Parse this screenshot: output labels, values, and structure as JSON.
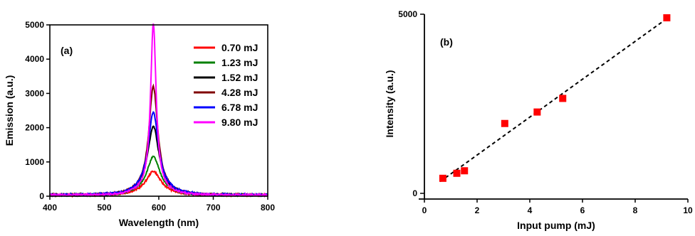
{
  "chart_data": [
    {
      "type": "line",
      "panel_label": "(a)",
      "xlabel": "Wavelength (nm)",
      "ylabel": "Emission (a.u.)",
      "xlim": [
        400,
        800
      ],
      "ylim": [
        0,
        5000
      ],
      "xticks": [
        400,
        500,
        600,
        700,
        800
      ],
      "yticks": [
        0,
        1000,
        2000,
        3000,
        4000,
        5000
      ],
      "peak_wavelength": 590,
      "legend_position": "top-right",
      "series": [
        {
          "name": "0.70 mJ",
          "color": "#ff0000",
          "peak": 580
        },
        {
          "name": "1.23 mJ",
          "color": "#008000",
          "peak": 1000
        },
        {
          "name": "1.52 mJ",
          "color": "#000000",
          "peak": 1900
        },
        {
          "name": "4.28 mJ",
          "color": "#800000",
          "peak": 3050
        },
        {
          "name": "6.78 mJ",
          "color": "#0000ff",
          "peak": 2300
        },
        {
          "name": "9.80 mJ",
          "color": "#ff00ff",
          "peak": 4900
        }
      ]
    },
    {
      "type": "scatter",
      "panel_label": "(b)",
      "xlabel": "Input pump (mJ)",
      "ylabel": "Intensity (a.u.)",
      "xlim": [
        0,
        10
      ],
      "ylim": [
        0,
        5000
      ],
      "xticks": [
        0,
        2,
        4,
        6,
        8,
        10
      ],
      "yticks": [
        0,
        5000
      ],
      "marker_color": "#ff0000",
      "points": [
        {
          "x": 0.7,
          "y": 420
        },
        {
          "x": 1.23,
          "y": 560
        },
        {
          "x": 1.52,
          "y": 630
        },
        {
          "x": 3.05,
          "y": 1950
        },
        {
          "x": 4.28,
          "y": 2270
        },
        {
          "x": 5.25,
          "y": 2650
        },
        {
          "x": 9.2,
          "y": 4900
        }
      ],
      "fit_line": {
        "style": "dashed",
        "color": "#000000",
        "from": [
          0.6,
          330
        ],
        "to": [
          9.3,
          4930
        ]
      }
    }
  ]
}
